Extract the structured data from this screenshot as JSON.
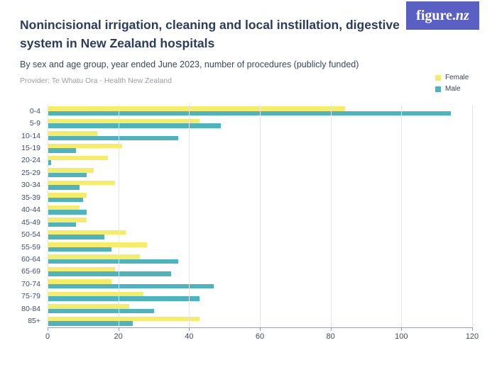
{
  "header": {
    "title": "Nonincisional irrigation, cleaning and local instillation, digestive system in New Zealand hospitals",
    "subtitle": "By sex and age group, year ended June 2023, number of procedures (publicly funded)",
    "provider": "Provider: Te Whatu Ora - Health New Zealand",
    "logo_text_main": "figure.",
    "logo_text_accent": "nz"
  },
  "colors": {
    "female": "#F6EC68",
    "male": "#4DB4BF",
    "logo_background": "#5A5FC4",
    "title_text": "#2C3C5C",
    "gridline": "#E4E5E7",
    "axis": "#99A0AA"
  },
  "legend": {
    "items": [
      {
        "label": "Female",
        "color": "#F6EC68"
      },
      {
        "label": "Male",
        "color": "#4DB4BF"
      }
    ]
  },
  "chart_data": {
    "type": "bar",
    "orientation": "horizontal",
    "title": "Nonincisional irrigation, cleaning and local instillation, digestive system in New Zealand hospitals",
    "subtitle": "By sex and age group, year ended June 2023, number of procedures (publicly funded)",
    "xlabel": "",
    "ylabel": "",
    "xlim": [
      0,
      120
    ],
    "xticks": [
      0,
      20,
      40,
      60,
      80,
      100,
      120
    ],
    "grid": true,
    "legend_position": "top-right",
    "categories": [
      "0-4",
      "5-9",
      "10-14",
      "15-19",
      "20-24",
      "25-29",
      "30-34",
      "35-39",
      "40-44",
      "45-49",
      "50-54",
      "55-59",
      "60-64",
      "65-69",
      "70-74",
      "75-79",
      "80-84",
      "85+"
    ],
    "series": [
      {
        "name": "Female",
        "color": "#F6EC68",
        "values": [
          84,
          43,
          14,
          21,
          17,
          13,
          19,
          11,
          9,
          11,
          22,
          28,
          26,
          19,
          18,
          27,
          23,
          43
        ]
      },
      {
        "name": "Male",
        "color": "#4DB4BF",
        "values": [
          114,
          49,
          37,
          8,
          1,
          11,
          9,
          10,
          11,
          8,
          16,
          18,
          37,
          35,
          47,
          43,
          30,
          24
        ]
      }
    ]
  }
}
